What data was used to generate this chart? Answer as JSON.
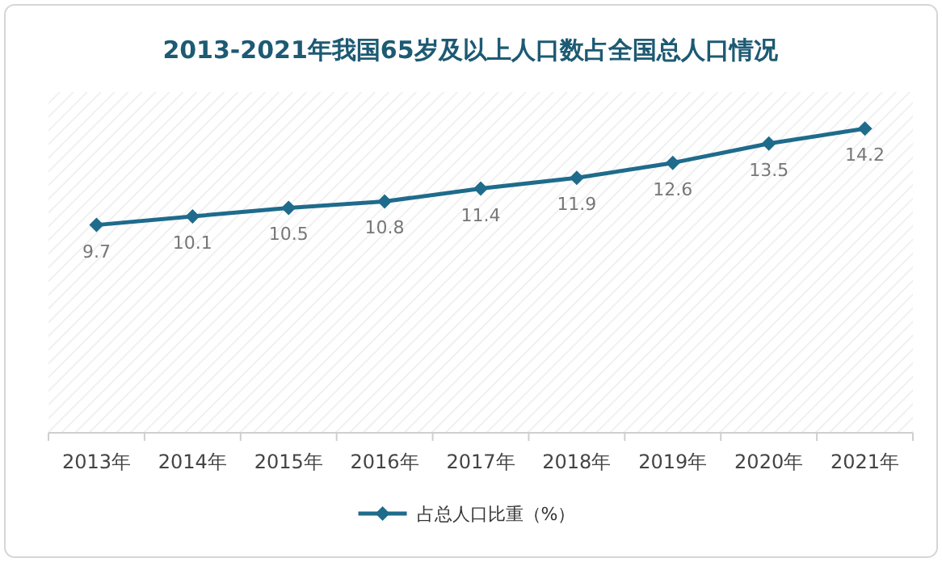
{
  "chart_data": {
    "type": "line",
    "title": "2013-2021年我国65岁及以上人口数占全国总人口情况",
    "categories": [
      "2013年",
      "2014年",
      "2015年",
      "2016年",
      "2017年",
      "2018年",
      "2019年",
      "2020年",
      "2021年"
    ],
    "series": [
      {
        "name": "占总人口比重（%）",
        "color": "#1f6b8c",
        "values": [
          9.7,
          10.1,
          10.5,
          10.8,
          11.4,
          11.9,
          12.6,
          13.5,
          14.2
        ]
      }
    ],
    "data_labels": true,
    "marker": "diamond",
    "legend": "bottom",
    "grid": false
  }
}
